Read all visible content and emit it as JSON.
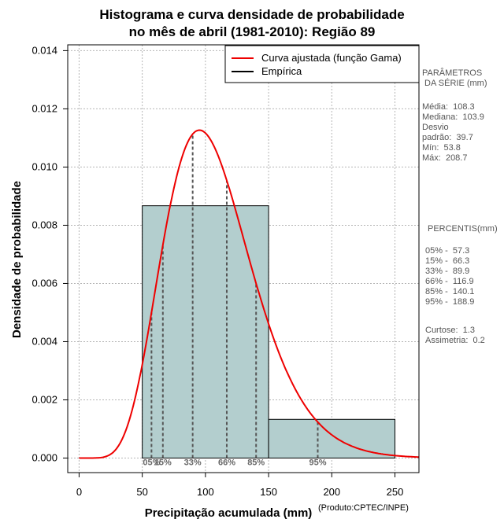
{
  "chart_data": {
    "type": "histogram",
    "title_line1": "Histograma e curva densidade de probabilidade",
    "title_line2": "no mês de abril (1981-2010): Região 89",
    "xlabel": "Precipitação acumulada (mm)",
    "ylabel": "Densidade de probabilidade",
    "source": "(Produto:CPTEC/INPE)",
    "xlim": [
      -9,
      269
    ],
    "ylim": [
      -0.0005,
      0.0142
    ],
    "xticks": [
      {
        "value": 0,
        "label": "0"
      },
      {
        "value": 50,
        "label": "50"
      },
      {
        "value": 100,
        "label": "100"
      },
      {
        "value": 150,
        "label": "150"
      },
      {
        "value": 200,
        "label": "200"
      },
      {
        "value": 250,
        "label": "250"
      }
    ],
    "yticks": [
      {
        "value": 0.0,
        "label": "0.000"
      },
      {
        "value": 0.002,
        "label": "0.002"
      },
      {
        "value": 0.004,
        "label": "0.004"
      },
      {
        "value": 0.006,
        "label": "0.006"
      },
      {
        "value": 0.008,
        "label": "0.008"
      },
      {
        "value": 0.01,
        "label": "0.010"
      },
      {
        "value": 0.012,
        "label": "0.012"
      },
      {
        "value": 0.014,
        "label": "0.014"
      }
    ],
    "bins": [
      {
        "start": 50,
        "end": 150,
        "density": 0.00867
      },
      {
        "start": 150,
        "end": 250,
        "density": 0.00133
      }
    ],
    "gamma_fit": {
      "shape": 8.4,
      "rate": 0.0777
    },
    "percentile_lines": [
      {
        "value": 57.3,
        "label": "05%"
      },
      {
        "value": 66.3,
        "label": "15%"
      },
      {
        "value": 89.9,
        "label": "33%"
      },
      {
        "value": 116.9,
        "label": "66%"
      },
      {
        "value": 140.1,
        "label": "85%"
      },
      {
        "value": 188.9,
        "label": "95%"
      }
    ],
    "legend": [
      {
        "label": "Curva ajustada (função Gama)",
        "color": "#ee0000"
      },
      {
        "label": "Empírica",
        "color": "#000000"
      }
    ],
    "colors": {
      "bar_fill": "#b3cece",
      "curve": "#ee0000",
      "grid": "#b5b5b5"
    }
  },
  "side_panel": {
    "params_title": "PARÂMETROS\n DA SÉRIE (mm)",
    "params": "Média:  108.3\nMediana:  103.9\nDesvio\npadrão:  39.7\nMín:  53.8\nMáx:  208.7",
    "percentis_title": "PERCENTIS(mm)",
    "percentis": "05% -  57.3\n15% -  66.3\n33% -  89.9\n66% -  116.9\n85% -  140.1\n95% -  188.9",
    "moments": "Curtose:  1.3\nAssimetria:  0.2"
  }
}
